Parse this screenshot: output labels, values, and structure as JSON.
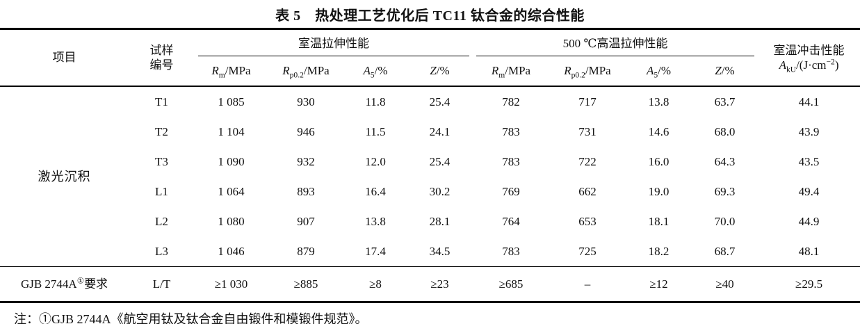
{
  "title": "表 5　热处理工艺优化后 TC11 钛合金的综合性能",
  "table": {
    "header": {
      "item": "项目",
      "sample_line1": "试样",
      "sample_line2": "编号",
      "group_rt": "室温拉伸性能",
      "group_ht": "500 ℃高温拉伸性能",
      "impact_line1": "室温冲击性能",
      "impact_sym": "A",
      "impact_sub": "kU",
      "impact_unit_pre": "/(J·cm",
      "impact_sup": "−2",
      "impact_unit_post": ")",
      "subheads": [
        {
          "sym": "R",
          "sub": "m",
          "unit": "/MPa"
        },
        {
          "sym": "R",
          "sub": "p0.2",
          "unit": "/MPa"
        },
        {
          "sym": "A",
          "sub": "5",
          "unit": "/%"
        },
        {
          "sym": "Z",
          "sub": "",
          "unit": "/%"
        }
      ]
    },
    "item_label": "激光沉积",
    "rows": [
      {
        "id": "T1",
        "values": [
          "1 085",
          "930",
          "11.8",
          "25.4",
          "782",
          "717",
          "13.8",
          "63.7",
          "44.1"
        ]
      },
      {
        "id": "T2",
        "values": [
          "1 104",
          "946",
          "11.5",
          "24.1",
          "783",
          "731",
          "14.6",
          "68.0",
          "43.9"
        ]
      },
      {
        "id": "T3",
        "values": [
          "1 090",
          "932",
          "12.0",
          "25.4",
          "783",
          "722",
          "16.0",
          "64.3",
          "43.5"
        ]
      },
      {
        "id": "L1",
        "values": [
          "1 064",
          "893",
          "16.4",
          "30.2",
          "769",
          "662",
          "19.0",
          "69.3",
          "49.4"
        ]
      },
      {
        "id": "L2",
        "values": [
          "1 080",
          "907",
          "13.8",
          "28.1",
          "764",
          "653",
          "18.1",
          "70.0",
          "44.9"
        ]
      },
      {
        "id": "L3",
        "values": [
          "1 046",
          "879",
          "17.4",
          "34.5",
          "783",
          "725",
          "18.2",
          "68.7",
          "48.1"
        ]
      }
    ],
    "requirement_row": {
      "label_pre": "GJB 2744A",
      "label_sup": "①",
      "label_post": "要求",
      "sample": "L/T",
      "values": [
        "≥1 030",
        "≥885",
        "≥8",
        "≥23",
        "≥685",
        "–",
        "≥12",
        "≥40",
        "≥29.5"
      ]
    }
  },
  "note": "注：①GJB 2744A《航空用钛及钛合金自由锻件和模锻件规范》。"
}
